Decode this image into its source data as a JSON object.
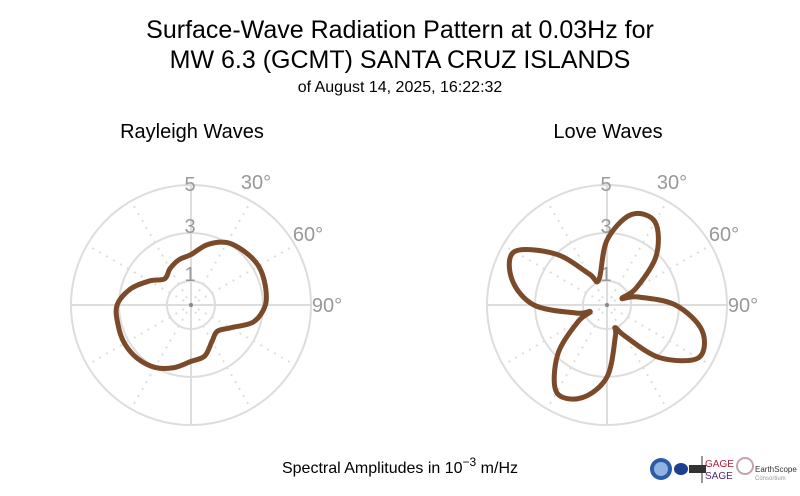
{
  "title": {
    "line1": "Surface-Wave Radiation Pattern at 0.03Hz for",
    "line2": "MW 6.3 (GCMT) SANTA CRUZ ISLANDS",
    "line3": "of August 14, 2025, 16:22:32"
  },
  "footer": {
    "text": "Spectral Amplitudes in ",
    "base": "10",
    "exp": "−3",
    "unit": " m/Hz"
  },
  "logos": {
    "gage": "GAGE",
    "sage": "SAGE",
    "earthscope": "EarthScope",
    "consortium": "Consortium"
  },
  "colors": {
    "curve": "#7b4a2a",
    "grid": "#dddddd",
    "tick_text": "#999999"
  },
  "chart_data": [
    {
      "type": "polar-line",
      "title": "Rayleigh Waves",
      "radial_ticks": [
        "1",
        "3",
        "5"
      ],
      "radial_tick_values": [
        1,
        3,
        5
      ],
      "radial_range": [
        0,
        5
      ],
      "angular_ticks": [
        "30°",
        "60°",
        "90°"
      ],
      "angular_tick_values": [
        30,
        60,
        90
      ],
      "direction": "clockwise from north",
      "grid": true,
      "azimuth_deg": [
        0,
        15,
        30,
        45,
        60,
        75,
        90,
        105,
        120,
        135,
        150,
        165,
        180,
        195,
        210,
        225,
        240,
        255,
        270,
        285,
        300,
        315,
        330,
        345
      ],
      "amplitude": [
        2.1,
        2.6,
        3.0,
        3.15,
        3.25,
        3.2,
        3.1,
        2.7,
        1.9,
        1.55,
        1.75,
        2.2,
        2.35,
        2.7,
        3.0,
        3.15,
        3.2,
        3.15,
        3.08,
        2.6,
        2.0,
        1.55,
        1.75,
        1.95
      ]
    },
    {
      "type": "polar-line",
      "title": "Love Waves",
      "radial_ticks": [
        "1",
        "3",
        "5"
      ],
      "radial_tick_values": [
        1,
        3,
        5
      ],
      "radial_range": [
        0,
        5
      ],
      "angular_ticks": [
        "30°",
        "60°",
        "90°"
      ],
      "angular_tick_values": [
        30,
        60,
        90
      ],
      "direction": "clockwise from north",
      "grid": true,
      "azimuth_deg": [
        0,
        15,
        30,
        45,
        60,
        66,
        75,
        90,
        105,
        120,
        135,
        150,
        160,
        165,
        180,
        195,
        210,
        225,
        240,
        248,
        255,
        270,
        285,
        300,
        315,
        330,
        342
      ],
      "amplitude": [
        2.7,
        3.9,
        4.0,
        2.9,
        1.4,
        0.68,
        1.3,
        2.85,
        4.1,
        4.4,
        3.1,
        1.5,
        1.0,
        1.35,
        3.0,
        4.0,
        4.2,
        2.9,
        1.4,
        0.75,
        1.3,
        3.05,
        4.1,
        4.45,
        3.0,
        1.5,
        1.1
      ]
    }
  ]
}
